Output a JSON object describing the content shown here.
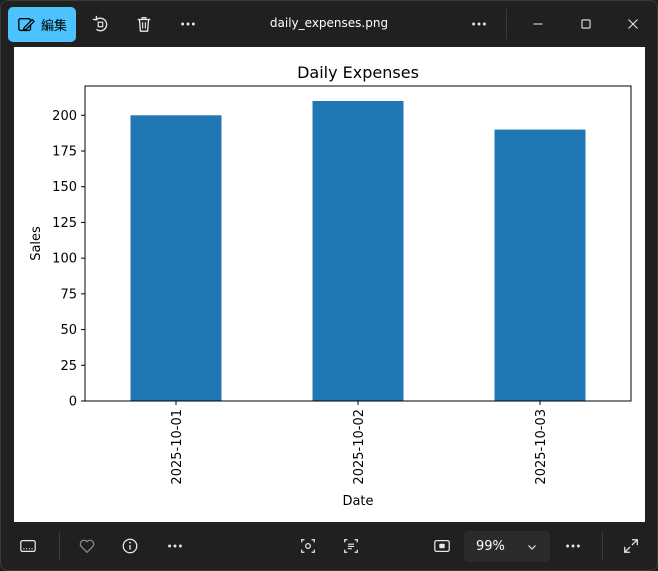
{
  "window": {
    "title": "daily_expenses.png",
    "edit_label": "編集"
  },
  "toolbar": {
    "zoom_value": "99%"
  },
  "chart_data": {
    "type": "bar",
    "title": "Daily Expenses",
    "xlabel": "Date",
    "ylabel": "Sales",
    "categories": [
      "2025-10-01",
      "2025-10-02",
      "2025-10-03"
    ],
    "values": [
      200,
      210,
      190
    ],
    "ylim": [
      0,
      220.5
    ],
    "yticks": [
      0,
      25,
      50,
      75,
      100,
      125,
      150,
      175,
      200
    ],
    "bar_color": "#1f77b4",
    "grid": false
  },
  "colors": {
    "accent": "#4cc2ff",
    "chrome_bg": "#202020"
  }
}
